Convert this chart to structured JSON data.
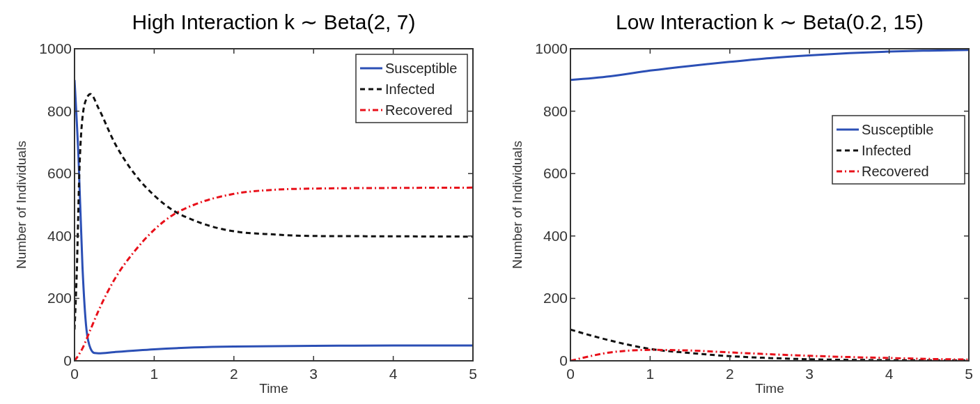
{
  "chart_data": [
    {
      "type": "line",
      "title": "High Interaction k ∼ Beta(2, 7)",
      "xlabel": "Time",
      "ylabel": "Number of Individuals",
      "xlim": [
        0,
        5
      ],
      "ylim": [
        0,
        1000
      ],
      "xticks": [
        0,
        1,
        2,
        3,
        4,
        5
      ],
      "yticks": [
        0,
        200,
        400,
        600,
        800,
        1000
      ],
      "legend": "top right",
      "series": [
        {
          "name": "Susceptible",
          "color": "#2b4fb5",
          "line_style": "solid",
          "x": [
            0,
            0.05,
            0.1,
            0.15,
            0.2,
            0.25,
            0.3,
            0.5,
            1,
            1.5,
            2,
            3,
            4,
            5
          ],
          "values": [
            900,
            650,
            300,
            100,
            40,
            25,
            24,
            28,
            37,
            43,
            46,
            48,
            49,
            49
          ]
        },
        {
          "name": "Infected",
          "color": "#111111",
          "line_style": "dashed",
          "x": [
            0,
            0.03,
            0.06,
            0.1,
            0.15,
            0.2,
            0.3,
            0.5,
            0.75,
            1,
            1.25,
            1.5,
            2,
            2.5,
            3,
            4,
            5
          ],
          "values": [
            100,
            300,
            600,
            780,
            840,
            855,
            810,
            700,
            600,
            530,
            480,
            450,
            415,
            405,
            400,
            399,
            398
          ]
        },
        {
          "name": "Recovered",
          "color": "#e8101a",
          "line_style": "dotted",
          "x": [
            0,
            0.1,
            0.2,
            0.3,
            0.5,
            0.75,
            1,
            1.25,
            1.5,
            2,
            2.5,
            3,
            4,
            5
          ],
          "values": [
            0,
            40,
            100,
            160,
            260,
            350,
            420,
            470,
            500,
            535,
            548,
            552,
            554,
            555
          ]
        }
      ]
    },
    {
      "type": "line",
      "title": "Low Interaction k ∼ Beta(0.2, 15)",
      "xlabel": "Time",
      "ylabel": "Number of Individuals",
      "xlim": [
        0,
        5
      ],
      "ylim": [
        0,
        1000
      ],
      "xticks": [
        0,
        1,
        2,
        3,
        4,
        5
      ],
      "yticks": [
        0,
        200,
        400,
        600,
        800,
        1000
      ],
      "legend": "right",
      "series": [
        {
          "name": "Susceptible",
          "color": "#2b4fb5",
          "line_style": "solid",
          "x": [
            0,
            0.5,
            1,
            1.5,
            2,
            2.5,
            3,
            3.5,
            4,
            4.5,
            5
          ],
          "values": [
            900,
            912,
            930,
            945,
            958,
            970,
            979,
            986,
            991,
            994,
            996
          ]
        },
        {
          "name": "Infected",
          "color": "#111111",
          "line_style": "dashed",
          "x": [
            0,
            0.5,
            1,
            1.5,
            2,
            2.5,
            3,
            3.5,
            4,
            5
          ],
          "values": [
            100,
            65,
            38,
            25,
            15,
            9,
            5,
            3,
            2,
            1
          ]
        },
        {
          "name": "Recovered",
          "color": "#e8101a",
          "line_style": "dotted",
          "x": [
            0,
            0.25,
            0.5,
            1,
            1.5,
            2,
            2.5,
            3,
            3.5,
            4,
            4.5,
            5
          ],
          "values": [
            0,
            15,
            27,
            35,
            33,
            27,
            21,
            16,
            12,
            9,
            6,
            4
          ]
        }
      ]
    }
  ]
}
